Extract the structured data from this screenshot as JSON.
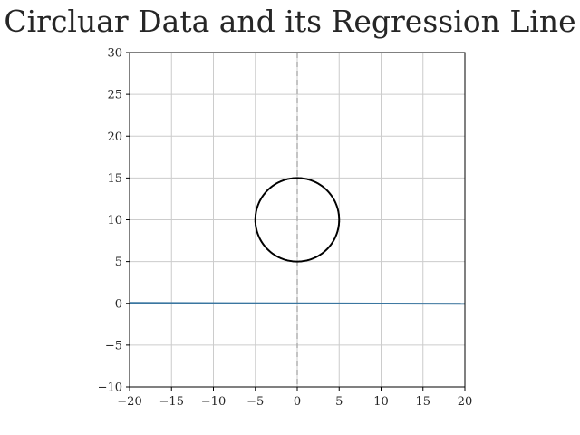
{
  "chart_data": {
    "type": "scatter",
    "title": "Circluar Data and its Regression Line",
    "xlabel": "",
    "ylabel": "",
    "xlim": [
      -20,
      20
    ],
    "ylim": [
      -10,
      30
    ],
    "x_ticks": [
      -20,
      -15,
      -10,
      -5,
      0,
      5,
      10,
      15,
      20
    ],
    "y_ticks": [
      -10,
      -5,
      0,
      5,
      10,
      15,
      20,
      25,
      30
    ],
    "x_tick_labels": [
      "−20",
      "−15",
      "−10",
      "−5",
      "0",
      "5",
      "10",
      "15",
      "20"
    ],
    "y_tick_labels": [
      "−10",
      "−5",
      "0",
      "5",
      "10",
      "15",
      "20",
      "25",
      "30"
    ],
    "grid": true,
    "series": [
      {
        "kind": "circle-points",
        "center": [
          0,
          10
        ],
        "radius": 5,
        "point_count": 360,
        "color": "#000000"
      },
      {
        "kind": "regression-line",
        "x": [
          -20,
          20
        ],
        "y": [
          0.05,
          -0.05
        ],
        "color": "#3a76a0"
      },
      {
        "kind": "vertical-reference-line",
        "x": 0,
        "style": "dashed",
        "color": "#b0b0b0"
      }
    ]
  },
  "colors": {
    "grid": "#cccccc",
    "axes": "#000000",
    "text": "#262626"
  }
}
